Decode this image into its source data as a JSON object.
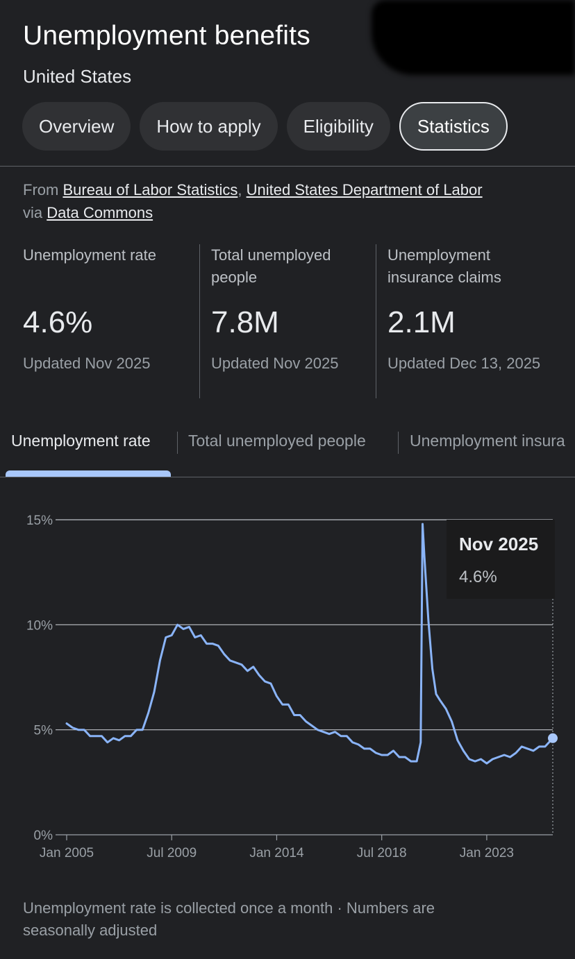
{
  "header": {
    "title": "Unemployment benefits",
    "subtitle": "United States"
  },
  "tabs": [
    {
      "label": "Overview"
    },
    {
      "label": "How to apply"
    },
    {
      "label": "Eligibility"
    },
    {
      "label": "Statistics",
      "active": true
    }
  ],
  "source": {
    "from": "From",
    "link1": "Bureau of Labor Statistics",
    "sep": ",",
    "link2": "United States Department of Labor",
    "via": "via",
    "link3": "Data Commons"
  },
  "stats": [
    {
      "label": "Unemployment rate",
      "value": "4.6%",
      "updated": "Updated Nov 2025"
    },
    {
      "label": "Total unemployed people",
      "value": "7.8M",
      "updated": "Updated Nov 2025"
    },
    {
      "label": "Unemployment insurance claims",
      "value": "2.1M",
      "updated": "Updated Dec 13, 2025"
    }
  ],
  "subtabs": [
    {
      "label": "Unemployment rate",
      "active": true
    },
    {
      "label": "Total unemployed people"
    },
    {
      "label": "Unemployment insura"
    }
  ],
  "chart_data": {
    "type": "line",
    "series": [
      {
        "points": [
          [
            2005.0,
            5.3
          ],
          [
            2005.25,
            5.1
          ],
          [
            2005.5,
            5.0
          ],
          [
            2005.75,
            5.0
          ],
          [
            2006.0,
            4.7
          ],
          [
            2006.25,
            4.7
          ],
          [
            2006.5,
            4.7
          ],
          [
            2006.75,
            4.4
          ],
          [
            2007.0,
            4.6
          ],
          [
            2007.25,
            4.5
          ],
          [
            2007.5,
            4.7
          ],
          [
            2007.75,
            4.7
          ],
          [
            2008.0,
            5.0
          ],
          [
            2008.25,
            5.0
          ],
          [
            2008.5,
            5.8
          ],
          [
            2008.75,
            6.8
          ],
          [
            2009.0,
            8.3
          ],
          [
            2009.25,
            9.4
          ],
          [
            2009.5,
            9.5
          ],
          [
            2009.75,
            10.0
          ],
          [
            2010.0,
            9.8
          ],
          [
            2010.25,
            9.9
          ],
          [
            2010.5,
            9.4
          ],
          [
            2010.75,
            9.5
          ],
          [
            2011.0,
            9.1
          ],
          [
            2011.25,
            9.1
          ],
          [
            2011.5,
            9.0
          ],
          [
            2011.75,
            8.6
          ],
          [
            2012.0,
            8.3
          ],
          [
            2012.25,
            8.2
          ],
          [
            2012.5,
            8.1
          ],
          [
            2012.75,
            7.8
          ],
          [
            2013.0,
            8.0
          ],
          [
            2013.25,
            7.6
          ],
          [
            2013.5,
            7.3
          ],
          [
            2013.75,
            7.2
          ],
          [
            2014.0,
            6.6
          ],
          [
            2014.25,
            6.2
          ],
          [
            2014.5,
            6.2
          ],
          [
            2014.75,
            5.7
          ],
          [
            2015.0,
            5.7
          ],
          [
            2015.25,
            5.4
          ],
          [
            2015.5,
            5.2
          ],
          [
            2015.75,
            5.0
          ],
          [
            2016.0,
            4.9
          ],
          [
            2016.25,
            4.8
          ],
          [
            2016.5,
            4.9
          ],
          [
            2016.75,
            4.7
          ],
          [
            2017.0,
            4.7
          ],
          [
            2017.25,
            4.4
          ],
          [
            2017.5,
            4.3
          ],
          [
            2017.75,
            4.1
          ],
          [
            2018.0,
            4.1
          ],
          [
            2018.25,
            3.9
          ],
          [
            2018.5,
            3.8
          ],
          [
            2018.75,
            3.8
          ],
          [
            2019.0,
            4.0
          ],
          [
            2019.25,
            3.7
          ],
          [
            2019.5,
            3.7
          ],
          [
            2019.75,
            3.5
          ],
          [
            2020.0,
            3.5
          ],
          [
            2020.17,
            4.4
          ],
          [
            2020.25,
            14.8
          ],
          [
            2020.33,
            13.2
          ],
          [
            2020.5,
            10.2
          ],
          [
            2020.67,
            7.9
          ],
          [
            2020.83,
            6.7
          ],
          [
            2021.0,
            6.4
          ],
          [
            2021.25,
            6.0
          ],
          [
            2021.5,
            5.4
          ],
          [
            2021.75,
            4.5
          ],
          [
            2022.0,
            4.0
          ],
          [
            2022.25,
            3.6
          ],
          [
            2022.5,
            3.5
          ],
          [
            2022.75,
            3.6
          ],
          [
            2023.0,
            3.4
          ],
          [
            2023.25,
            3.6
          ],
          [
            2023.5,
            3.7
          ],
          [
            2023.75,
            3.8
          ],
          [
            2024.0,
            3.7
          ],
          [
            2024.25,
            3.9
          ],
          [
            2024.5,
            4.2
          ],
          [
            2024.75,
            4.1
          ],
          [
            2025.0,
            4.0
          ],
          [
            2025.25,
            4.2
          ],
          [
            2025.5,
            4.2
          ],
          [
            2025.83,
            4.6
          ]
        ]
      }
    ],
    "xlim": [
      2005.0,
      2025.83
    ],
    "ylim": [
      0,
      15
    ],
    "y_ticks": [
      {
        "value": 0,
        "label": "0%"
      },
      {
        "value": 5,
        "label": "5%"
      },
      {
        "value": 10,
        "label": "10%"
      },
      {
        "value": 15,
        "label": "15%"
      }
    ],
    "x_ticks": [
      {
        "value": 2005.0,
        "label": "Jan 2005"
      },
      {
        "value": 2009.5,
        "label": "Jul 2009"
      },
      {
        "value": 2014.0,
        "label": "Jan 2014"
      },
      {
        "value": 2018.5,
        "label": "Jul 2018"
      },
      {
        "value": 2023.0,
        "label": "Jan 2023"
      }
    ],
    "grid": true,
    "line_color": "#8ab4f8",
    "tooltip": {
      "date": "Nov 2025",
      "value": "4.6%"
    }
  },
  "footnote": "Unemployment rate is collected once a month · Numbers are seasonally adjusted",
  "colors": {
    "background": "#202124",
    "accent": "#a8c7fa",
    "line": "#8ab4f8"
  }
}
